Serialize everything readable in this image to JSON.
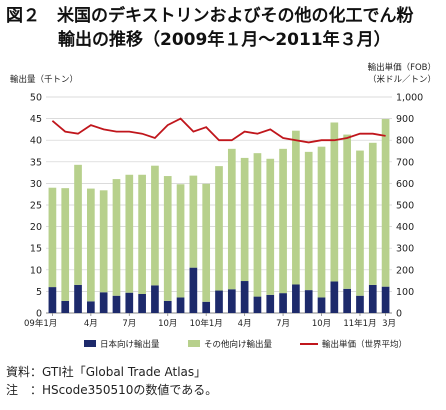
{
  "title_line1": "図２　米国のデキストリンおよびその他の化工でん粉",
  "title_line2": "輸出の推移（2009年１月～2011年３月）",
  "notes": {
    "source": "資料：GTI社「Global Trade Atlas」",
    "note": "注　：HScode350510の数値である。"
  },
  "chart_data": {
    "type": "bar",
    "months": [
      "09年1月",
      "2",
      "3",
      "4",
      "5",
      "6",
      "7",
      "8",
      "9",
      "10",
      "11",
      "12",
      "10年1月",
      "2",
      "3",
      "4",
      "5",
      "6",
      "7",
      "8",
      "9",
      "10",
      "11",
      "12",
      "11年1月",
      "2",
      "3"
    ],
    "x_tick_labels": [
      "09年1月",
      "4月",
      "7月",
      "10月",
      "10年1月",
      "4月",
      "7月",
      "10月",
      "11年1月",
      "3月"
    ],
    "left_axis": {
      "label": "輸出量（千トン）",
      "ylim": [
        0,
        50
      ],
      "ticks": [
        0,
        5,
        10,
        15,
        20,
        25,
        30,
        35,
        40,
        45,
        50
      ]
    },
    "right_axis": {
      "label_line1": "輸出単価（FOB）",
      "label_line2": "（米ドル／トン）",
      "ylim": [
        0,
        1000
      ],
      "ticks": [
        "0",
        "100",
        "200",
        "300",
        "400",
        "500",
        "600",
        "700",
        "800",
        "900",
        "1,000"
      ]
    },
    "stacked": true,
    "series": [
      {
        "name": "日本向け輸出量",
        "type": "bar",
        "color": "#1d2a6b",
        "values": [
          6.0,
          2.8,
          6.5,
          2.7,
          4.8,
          4.0,
          4.7,
          4.4,
          6.4,
          2.8,
          3.6,
          10.5,
          2.6,
          5.2,
          5.5,
          7.4,
          3.8,
          4.2,
          4.6,
          6.6,
          5.3,
          3.6,
          7.3,
          5.6,
          4.0,
          6.5,
          6.1
        ]
      },
      {
        "name": "その他向け輸出量",
        "type": "bar",
        "color": "#b7d08c",
        "values": [
          23.0,
          26.1,
          27.8,
          26.1,
          23.6,
          27.0,
          27.3,
          27.6,
          27.7,
          28.9,
          26.2,
          21.3,
          27.3,
          28.8,
          32.5,
          28.5,
          33.2,
          31.5,
          33.4,
          35.6,
          32.0,
          34.9,
          36.8,
          35.7,
          33.6,
          32.9,
          38.8
        ]
      },
      {
        "name": "輸出単価（世界平均）",
        "type": "line",
        "axis": "right",
        "color": "#c0161c",
        "values": [
          890,
          840,
          830,
          870,
          850,
          840,
          840,
          830,
          810,
          870,
          900,
          840,
          860,
          800,
          800,
          840,
          830,
          850,
          810,
          800,
          790,
          800,
          800,
          810,
          830,
          830,
          820
        ]
      }
    ]
  }
}
